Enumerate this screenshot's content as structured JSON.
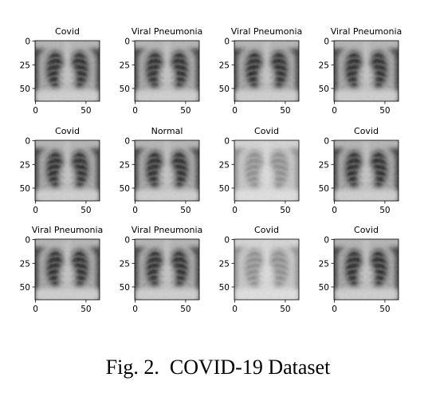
{
  "figure": {
    "caption": "Fig. 2.  COVID-19 Dataset",
    "panels": [
      {
        "title": "Covid",
        "y_ticks": [
          "0",
          "25",
          "50"
        ],
        "x_ticks": [
          "0",
          "50"
        ]
      },
      {
        "title": "Viral Pneumonia",
        "y_ticks": [
          "0",
          "25",
          "50"
        ],
        "x_ticks": [
          "0",
          "50"
        ]
      },
      {
        "title": "Viral Pneumonia",
        "y_ticks": [
          "0",
          "25",
          "50"
        ],
        "x_ticks": [
          "0",
          "50"
        ]
      },
      {
        "title": "Viral Pneumonia",
        "y_ticks": [
          "0",
          "25",
          "50"
        ],
        "x_ticks": [
          "0",
          "50"
        ]
      },
      {
        "title": "Covid",
        "y_ticks": [
          "0",
          "25",
          "50"
        ],
        "x_ticks": [
          "0",
          "50"
        ]
      },
      {
        "title": "Normal",
        "y_ticks": [
          "0",
          "25",
          "50"
        ],
        "x_ticks": [
          "0",
          "50"
        ]
      },
      {
        "title": "Covid",
        "y_ticks": [
          "0",
          "25",
          "50"
        ],
        "x_ticks": [
          "0",
          "50"
        ]
      },
      {
        "title": "Covid",
        "y_ticks": [
          "0",
          "25",
          "50"
        ],
        "x_ticks": [
          "0",
          "50"
        ]
      },
      {
        "title": "Viral Pneumonia",
        "y_ticks": [
          "0",
          "25",
          "50"
        ],
        "x_ticks": [
          "0",
          "50"
        ]
      },
      {
        "title": "Viral Pneumonia",
        "y_ticks": [
          "0",
          "25",
          "50"
        ],
        "x_ticks": [
          "0",
          "50"
        ]
      },
      {
        "title": "Covid",
        "y_ticks": [
          "0",
          "25",
          "50"
        ],
        "x_ticks": [
          "0",
          "50"
        ]
      },
      {
        "title": "Covid",
        "y_ticks": [
          "0",
          "25",
          "50"
        ],
        "x_ticks": [
          "0",
          "50"
        ]
      }
    ]
  }
}
